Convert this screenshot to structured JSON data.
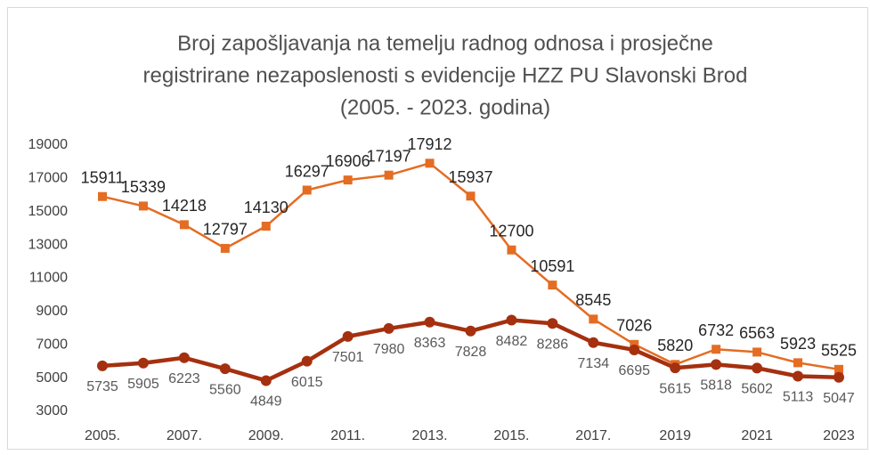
{
  "chart_data": {
    "type": "line",
    "title": [
      "Broj zapošljavanja na temelju radnog odnosa i prosječne",
      "registrirane nezaposlenosti s evidencije  HZZ PU Slavonski Brod",
      "(2005. - 2023. godina)"
    ],
    "categories": [
      "2005.",
      null,
      "2007.",
      null,
      "2009.",
      null,
      "2011.",
      null,
      "2013.",
      null,
      "2015.",
      null,
      "2017.",
      null,
      "2019",
      null,
      "2021",
      null,
      "2023"
    ],
    "series": [
      {
        "color": "#e46c23",
        "marker": "square",
        "values": [
          15911,
          15339,
          14218,
          12797,
          14130,
          16297,
          16906,
          17197,
          17912,
          15937,
          12700,
          10591,
          8545,
          7026,
          5820,
          6732,
          6563,
          5923,
          5525
        ]
      },
      {
        "color": "#a5300f",
        "marker": "circle",
        "values": [
          5735,
          5905,
          6223,
          5560,
          4849,
          6015,
          7501,
          7980,
          8363,
          7828,
          8482,
          8286,
          7134,
          6695,
          5615,
          5818,
          5602,
          5113,
          5047
        ]
      }
    ],
    "ylim": [
      3000,
      19000
    ],
    "yticks": [
      3000,
      5000,
      7000,
      9000,
      11000,
      13000,
      15000,
      17000,
      19000
    ],
    "grid": false
  }
}
